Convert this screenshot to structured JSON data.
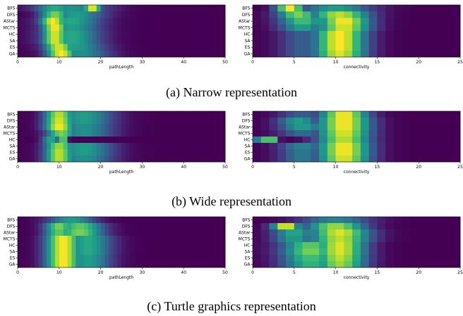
{
  "figure": {
    "rows": [
      "BFS",
      "DFS",
      "AStar",
      "MCTS",
      "HC",
      "SA",
      "ES",
      "GA"
    ],
    "panels": [
      {
        "caption": "(a) Narrow representation"
      },
      {
        "caption": "(b) Wide representation"
      },
      {
        "caption": "(c) Turtle graphics representation"
      }
    ]
  },
  "chart_data": [
    {
      "type": "heatmap",
      "representation": "Narrow",
      "metric": "pathLength",
      "xlabel": "pathLength",
      "xlim": [
        0,
        50
      ],
      "xticks": [
        0,
        10,
        20,
        30,
        40,
        50
      ],
      "bins": 50,
      "rows": [
        "BFS",
        "DFS",
        "AStar",
        "MCTS",
        "HC",
        "SA",
        "ES",
        "GA"
      ],
      "profiles": [
        {
          "row": "BFS",
          "peaks": [
            [
              9,
              3.5,
              0.6
            ],
            [
              18,
              1.5,
              1.0
            ],
            [
              13,
              6,
              0.5
            ]
          ]
        },
        {
          "row": "DFS",
          "peaks": [
            [
              9,
              2.5,
              0.8
            ],
            [
              14,
              5,
              0.55
            ]
          ]
        },
        {
          "row": "AStar",
          "peaks": [
            [
              8.5,
              2.2,
              1.0
            ],
            [
              13,
              5,
              0.6
            ]
          ]
        },
        {
          "row": "MCTS",
          "peaks": [
            [
              9,
              2.2,
              1.0
            ],
            [
              13,
              5,
              0.55
            ]
          ]
        },
        {
          "row": "HC",
          "peaks": [
            [
              9,
              2.2,
              0.95
            ],
            [
              13,
              5,
              0.6
            ]
          ]
        },
        {
          "row": "SA",
          "peaks": [
            [
              9,
              2.2,
              0.95
            ],
            [
              13,
              5,
              0.6
            ]
          ]
        },
        {
          "row": "ES",
          "peaks": [
            [
              10,
              2.5,
              0.95
            ],
            [
              14,
              5,
              0.55
            ]
          ]
        },
        {
          "row": "GA",
          "peaks": [
            [
              10.5,
              2.5,
              1.0
            ],
            [
              15,
              5,
              0.5
            ]
          ]
        }
      ]
    },
    {
      "type": "heatmap",
      "representation": "Narrow",
      "metric": "connectivity",
      "xlabel": "connectivity",
      "xlim": [
        0,
        25
      ],
      "xticks": [
        0,
        5,
        10,
        15,
        20,
        25
      ],
      "bins": 25,
      "rows": [
        "BFS",
        "DFS",
        "AStar",
        "MCTS",
        "HC",
        "SA",
        "ES",
        "GA"
      ],
      "profiles": [
        {
          "row": "BFS",
          "peaks": [
            [
              4.5,
              1.2,
              1.0
            ],
            [
              10,
              3,
              0.55
            ]
          ]
        },
        {
          "row": "DFS",
          "peaks": [
            [
              5.5,
              1.8,
              0.8
            ],
            [
              10.5,
              2.5,
              0.9
            ]
          ]
        },
        {
          "row": "AStar",
          "peaks": [
            [
              6,
              2,
              0.7
            ],
            [
              11,
              2.2,
              1.0
            ]
          ]
        },
        {
          "row": "MCTS",
          "peaks": [
            [
              6,
              2,
              0.55
            ],
            [
              11,
              2.2,
              0.95
            ]
          ]
        },
        {
          "row": "HC",
          "peaks": [
            [
              10.5,
              2.2,
              1.0
            ],
            [
              6,
              2,
              0.3
            ]
          ]
        },
        {
          "row": "SA",
          "peaks": [
            [
              10.5,
              2.2,
              1.0
            ],
            [
              6,
              2,
              0.3
            ]
          ]
        },
        {
          "row": "ES",
          "peaks": [
            [
              10.5,
              2.2,
              1.0
            ],
            [
              6,
              2,
              0.3
            ]
          ]
        },
        {
          "row": "GA",
          "peaks": [
            [
              10.5,
              2.2,
              0.95
            ],
            [
              6,
              2,
              0.3
            ]
          ]
        }
      ]
    },
    {
      "type": "heatmap",
      "representation": "Wide",
      "metric": "pathLength",
      "xlabel": "pathLength",
      "xlim": [
        0,
        50
      ],
      "xticks": [
        0,
        10,
        20,
        30,
        40,
        50
      ],
      "bins": 50,
      "rows": [
        "BFS",
        "DFS",
        "AStar",
        "MCTS",
        "HC",
        "SA",
        "ES",
        "GA"
      ],
      "profiles": [
        {
          "row": "BFS",
          "peaks": [
            [
              10,
              2.5,
              0.9
            ],
            [
              16,
              5,
              0.55
            ]
          ]
        },
        {
          "row": "DFS",
          "peaks": [
            [
              10,
              2.5,
              0.95
            ],
            [
              16,
              5,
              0.55
            ]
          ]
        },
        {
          "row": "AStar",
          "peaks": [
            [
              10,
              2.5,
              1.0
            ],
            [
              16,
              5,
              0.5
            ]
          ]
        },
        {
          "row": "MCTS",
          "peaks": [
            [
              10.5,
              2.5,
              0.8
            ],
            [
              16,
              5,
              0.5
            ]
          ]
        },
        {
          "row": "HC",
          "peaks": [
            [
              11,
              0.6,
              1.0
            ],
            [
              8,
              1.5,
              0.6
            ]
          ]
        },
        {
          "row": "SA",
          "peaks": [
            [
              10,
              2.5,
              0.85
            ],
            [
              16,
              5,
              0.55
            ]
          ]
        },
        {
          "row": "ES",
          "peaks": [
            [
              10,
              2.5,
              0.9
            ],
            [
              16,
              5,
              0.55
            ]
          ]
        },
        {
          "row": "GA",
          "peaks": [
            [
              10,
              2.5,
              0.9
            ],
            [
              16,
              5,
              0.5
            ]
          ]
        }
      ]
    },
    {
      "type": "heatmap",
      "representation": "Wide",
      "metric": "connectivity",
      "xlabel": "connectivity",
      "xlim": [
        0,
        25
      ],
      "xticks": [
        0,
        5,
        10,
        15,
        20,
        25
      ],
      "bins": 25,
      "rows": [
        "BFS",
        "DFS",
        "AStar",
        "MCTS",
        "HC",
        "SA",
        "ES",
        "GA"
      ],
      "profiles": [
        {
          "row": "BFS",
          "peaks": [
            [
              11,
              2,
              1.0
            ],
            [
              6,
              2,
              0.3
            ]
          ]
        },
        {
          "row": "DFS",
          "peaks": [
            [
              5.5,
              1.8,
              0.55
            ],
            [
              11,
              2.2,
              1.0
            ]
          ]
        },
        {
          "row": "AStar",
          "peaks": [
            [
              6,
              2,
              0.55
            ],
            [
              11,
              2.2,
              1.0
            ]
          ]
        },
        {
          "row": "MCTS",
          "peaks": [
            [
              11,
              2.2,
              0.95
            ],
            [
              6,
              2,
              0.35
            ]
          ]
        },
        {
          "row": "HC",
          "peaks": [
            [
              2,
              0.6,
              1.0
            ],
            [
              1,
              0.5,
              0.7
            ],
            [
              11,
              2.2,
              0.9
            ]
          ]
        },
        {
          "row": "SA",
          "peaks": [
            [
              11,
              2.2,
              1.0
            ],
            [
              6,
              2,
              0.45
            ]
          ]
        },
        {
          "row": "ES",
          "peaks": [
            [
              11,
              2.2,
              1.0
            ],
            [
              6,
              2,
              0.4
            ]
          ]
        },
        {
          "row": "GA",
          "peaks": [
            [
              11,
              2.2,
              0.95
            ],
            [
              6,
              2,
              0.4
            ]
          ]
        }
      ]
    },
    {
      "type": "heatmap",
      "representation": "Turtle graphics",
      "metric": "pathLength",
      "xlabel": "pathLength",
      "xlim": [
        0,
        50
      ],
      "xticks": [
        0,
        10,
        20,
        30,
        40,
        50
      ],
      "bins": 50,
      "rows": [
        "BFS",
        "DFS",
        "AStar",
        "MCTS",
        "HC",
        "SA",
        "ES",
        "GA"
      ],
      "profiles": [
        {
          "row": "BFS",
          "peaks": [
            [
              13,
              4,
              0.55
            ],
            [
              9,
              1.5,
              0.3
            ]
          ]
        },
        {
          "row": "DFS",
          "peaks": [
            [
              10,
              2.5,
              0.8
            ],
            [
              15,
              4,
              0.75
            ]
          ]
        },
        {
          "row": "AStar",
          "peaks": [
            [
              10,
              2.5,
              0.75
            ],
            [
              15,
              4,
              0.8
            ]
          ]
        },
        {
          "row": "MCTS",
          "peaks": [
            [
              11,
              3,
              1.0
            ],
            [
              17,
              4,
              0.6
            ]
          ]
        },
        {
          "row": "HC",
          "peaks": [
            [
              11,
              3,
              1.0
            ],
            [
              17,
              4,
              0.6
            ]
          ]
        },
        {
          "row": "SA",
          "peaks": [
            [
              11,
              3,
              1.0
            ],
            [
              17,
              4,
              0.6
            ]
          ]
        },
        {
          "row": "ES",
          "peaks": [
            [
              11,
              3,
              1.0
            ],
            [
              17,
              4,
              0.55
            ]
          ]
        },
        {
          "row": "GA",
          "peaks": [
            [
              11,
              3,
              1.0
            ],
            [
              17,
              4,
              0.55
            ]
          ]
        }
      ]
    },
    {
      "type": "heatmap",
      "representation": "Turtle graphics",
      "metric": "connectivity",
      "xlabel": "connectivity",
      "xlim": [
        0,
        25
      ],
      "xticks": [
        0,
        5,
        10,
        15,
        20,
        25
      ],
      "bins": 25,
      "rows": [
        "BFS",
        "DFS",
        "AStar",
        "MCTS",
        "HC",
        "SA",
        "ES",
        "GA"
      ],
      "profiles": [
        {
          "row": "BFS",
          "peaks": [
            [
              10,
              3,
              0.45
            ]
          ]
        },
        {
          "row": "DFS",
          "peaks": [
            [
              4,
              1.2,
              1.0
            ],
            [
              10,
              2.5,
              0.85
            ]
          ]
        },
        {
          "row": "AStar",
          "peaks": [
            [
              5,
              1.8,
              0.6
            ],
            [
              10.5,
              2.5,
              0.95
            ]
          ]
        },
        {
          "row": "MCTS",
          "peaks": [
            [
              5,
              1.8,
              0.55
            ],
            [
              10.5,
              2.5,
              0.9
            ]
          ]
        },
        {
          "row": "HC",
          "peaks": [
            [
              7,
              2.5,
              0.75
            ],
            [
              10.5,
              2.2,
              0.95
            ]
          ]
        },
        {
          "row": "SA",
          "peaks": [
            [
              7,
              2.5,
              0.8
            ],
            [
              10.5,
              2.2,
              0.95
            ]
          ]
        },
        {
          "row": "ES",
          "peaks": [
            [
              7,
              2.5,
              0.7
            ],
            [
              10.5,
              2.2,
              0.9
            ]
          ]
        },
        {
          "row": "GA",
          "peaks": [
            [
              7,
              2.5,
              0.65
            ],
            [
              10.5,
              2.2,
              0.85
            ]
          ]
        }
      ]
    }
  ]
}
